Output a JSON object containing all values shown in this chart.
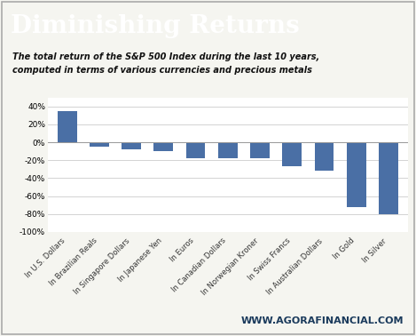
{
  "title": "Diminishing Returns",
  "subtitle": "The total return of the S&P 500 Index during the last 10 years,\ncomputed in terms of various currencies and precious metals",
  "footer": "WWW.AGORAFINANCIAL.COM",
  "categories": [
    "In U.S. Dollars",
    "In Brazilian Reals",
    "In Singapore Dollars",
    "In Japanese Yen",
    "In Euros",
    "In Canadian Dollars",
    "In Norwegian Kroner",
    "In Swiss Francs",
    "In Australian Dollars",
    "In Gold",
    "In Silver"
  ],
  "values": [
    35,
    -5,
    -8,
    -10,
    -18,
    -18,
    -18,
    -27,
    -32,
    -72,
    -80
  ],
  "bar_color": "#4a6fa5",
  "title_bg_color": "#1a3a5c",
  "title_text_color": "#ffffff",
  "body_bg_color": "#f5f5f0",
  "chart_bg_color": "#ffffff",
  "grid_color": "#cccccc",
  "subtitle_color": "#111111",
  "footer_color": "#1a3a5c",
  "border_color": "#aaaaaa",
  "ylim": [
    -100,
    50
  ],
  "yticks": [
    -100,
    -80,
    -60,
    -40,
    -20,
    0,
    20,
    40
  ],
  "title_fontsize": 20,
  "subtitle_fontsize": 7,
  "footer_fontsize": 8,
  "tick_fontsize": 6.5,
  "xlabel_fontsize": 6
}
